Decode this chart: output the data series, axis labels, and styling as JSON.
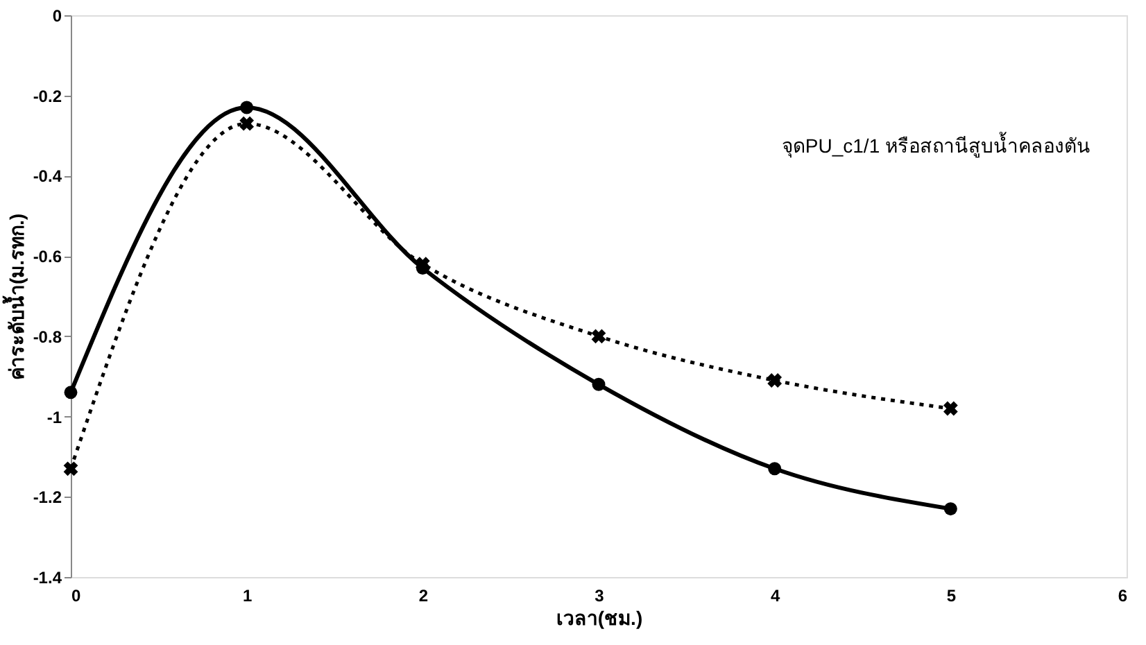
{
  "chart_data": {
    "type": "line",
    "xlabel": "เวลา(ชม.)",
    "ylabel": "ค่าระดับน้ำ(ม.รทก.)",
    "annotations": [
      "จุดPU_c1/1 หรือสถานีสูบน้ำคลองตัน"
    ],
    "x": [
      0,
      1,
      2,
      3,
      4,
      5
    ],
    "series": [
      {
        "color": "#000000",
        "marker": "circle",
        "line_style": "solid",
        "values": [
          -0.94,
          -0.23,
          -0.63,
          -0.92,
          -1.13,
          -1.23
        ]
      },
      {
        "color": "#000000",
        "marker": "cross",
        "line_style": "dotted",
        "values": [
          -1.13,
          -0.27,
          -0.62,
          -0.8,
          -0.91,
          -0.98
        ]
      }
    ],
    "xlim": [
      0,
      6
    ],
    "xticks": [
      0,
      1,
      2,
      3,
      4,
      5,
      6
    ],
    "ylim": [
      -1.4,
      0
    ],
    "yticks": [
      0,
      -0.2,
      -0.4,
      -0.6,
      -0.8,
      -1,
      -1.2,
      -1.4
    ],
    "grid": false
  }
}
